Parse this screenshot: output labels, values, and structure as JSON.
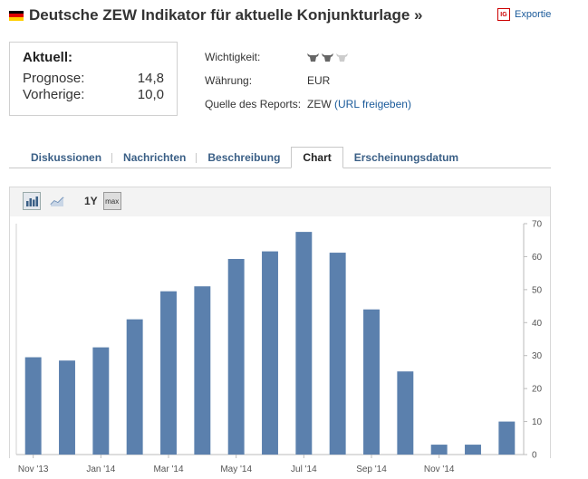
{
  "header": {
    "title": "Deutsche ZEW Indikator für aktuelle Konjunkturlage »",
    "export_label": "Exportie",
    "export_icon_text": "IG"
  },
  "current": {
    "title": "Aktuell:",
    "forecast_label": "Prognose:",
    "forecast_value": "14,8",
    "previous_label": "Vorherige:",
    "previous_value": "10,0"
  },
  "info": {
    "importance_label": "Wichtigkeit:",
    "importance_level": 2,
    "importance_max": 3,
    "currency_label": "Währung:",
    "currency_value": "EUR",
    "source_label": "Quelle des Reports:",
    "source_value": "ZEW",
    "source_link_open": "(",
    "source_link": "URL freigeben",
    "source_link_close": ")"
  },
  "tabs": [
    {
      "label": "Diskussionen",
      "active": false
    },
    {
      "label": "Nachrichten",
      "active": false
    },
    {
      "label": "Beschreibung",
      "active": false
    },
    {
      "label": "Chart",
      "active": true
    },
    {
      "label": "Erscheinungsdatum",
      "active": false
    }
  ],
  "toolbar": {
    "period_label": "1Y",
    "max_label": "max"
  },
  "chart_data": {
    "type": "bar",
    "values": [
      29.5,
      28.5,
      32.5,
      41,
      49.5,
      51,
      59.3,
      61.6,
      67.5,
      61.2,
      44,
      25.2,
      3,
      3,
      10
    ],
    "x_tick_labels": [
      "Nov '13",
      "Jan '14",
      "Mar '14",
      "May '14",
      "Jul '14",
      "Sep '14",
      "Nov '14"
    ],
    "y_ticks": [
      0,
      10,
      20,
      30,
      40,
      50,
      60,
      70
    ],
    "ylim": [
      0,
      70
    ],
    "bar_color": "#5b80ad",
    "axis_side": "right"
  }
}
